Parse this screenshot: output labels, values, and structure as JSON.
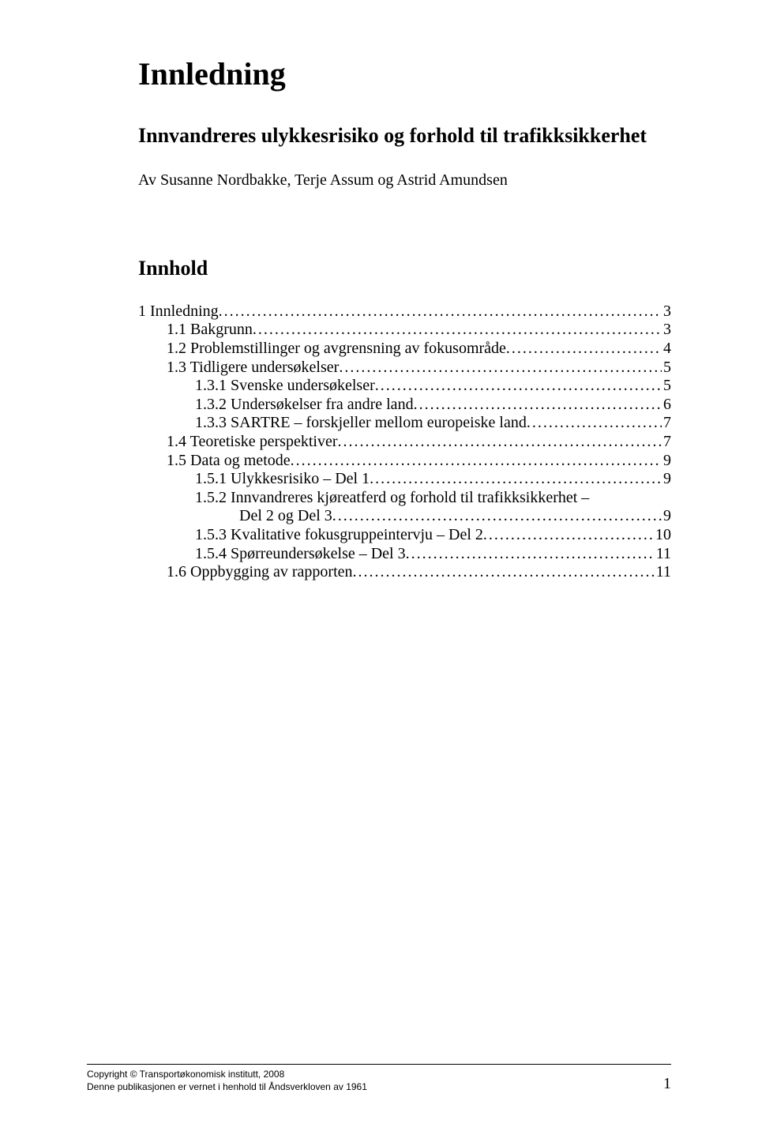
{
  "title": "Innledning",
  "subtitle": "Innvandreres ulykkesrisiko og forhold til trafikksikkerhet",
  "author": "Av Susanne Nordbakke, Terje Assum og Astrid Amundsen",
  "toc_heading": "Innhold",
  "toc": [
    {
      "label": "1 Innledning",
      "page": "3",
      "indent": 0
    },
    {
      "label": "1.1 Bakgrunn",
      "page": "3",
      "indent": 1
    },
    {
      "label": "1.2 Problemstillinger og avgrensning av fokusområde",
      "page": "4",
      "indent": 1
    },
    {
      "label": "1.3 Tidligere undersøkelser",
      "page": "5",
      "indent": 1
    },
    {
      "label": "1.3.1 Svenske undersøkelser",
      "page": "5",
      "indent": 2
    },
    {
      "label": "1.3.2 Undersøkelser fra andre land",
      "page": "6",
      "indent": 2
    },
    {
      "label": "1.3.3 SARTRE – forskjeller mellom europeiske land",
      "page": "7",
      "indent": 2
    },
    {
      "label": "1.4 Teoretiske perspektiver",
      "page": "7",
      "indent": 1
    },
    {
      "label": "1.5 Data og metode",
      "page": "9",
      "indent": 1
    },
    {
      "label": "1.5.1 Ulykkesrisiko – Del 1",
      "page": "9",
      "indent": 2
    },
    {
      "label": "1.5.2 Innvandreres kjøreatferd og forhold til trafikksikkerhet –",
      "page": "",
      "indent": 2,
      "no_dots": true
    },
    {
      "label": "Del 2 og Del 3",
      "page": "9",
      "indent": "continue"
    },
    {
      "label": "1.5.3 Kvalitative fokusgruppeintervju – Del 2",
      "page": "10",
      "indent": 2
    },
    {
      "label": "1.5.4 Spørreundersøkelse – Del 3",
      "page": "11",
      "indent": 2
    },
    {
      "label": "1.6 Oppbygging av rapporten",
      "page": "11",
      "indent": 1
    }
  ],
  "footer": {
    "line1": "Copyright © Transportøkonomisk institutt, 2008",
    "line2": "Denne publikasjonen er vernet i henhold til Åndsverkloven av 1961",
    "page_number": "1"
  },
  "colors": {
    "text": "#000000",
    "background": "#ffffff"
  },
  "typography": {
    "title_fontsize": 40,
    "subtitle_fontsize": 26,
    "author_fontsize": 20,
    "toc_heading_fontsize": 26,
    "toc_fontsize": 20,
    "footer_fontsize": 12,
    "footer_page_fontsize": 20,
    "body_font": "Times New Roman",
    "footer_font": "Arial"
  }
}
